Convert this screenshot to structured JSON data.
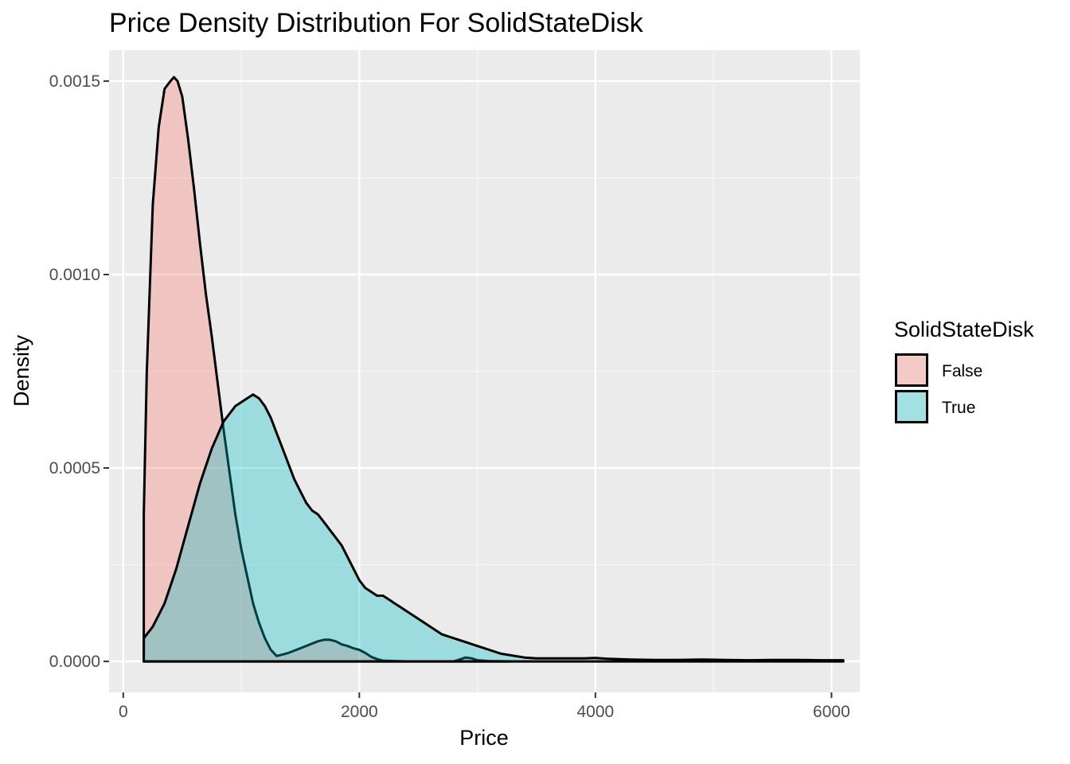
{
  "chart_data": {
    "type": "area",
    "title": "Price Density Distribution For SolidStateDisk",
    "xlabel": "Price",
    "ylabel": "Density",
    "xlim": [
      -120,
      6240
    ],
    "ylim": [
      -8e-05,
      0.00158
    ],
    "x_ticks": [
      0,
      2000,
      4000,
      6000
    ],
    "x_tick_labels": [
      "0",
      "2000",
      "4000",
      "6000"
    ],
    "y_ticks": [
      0,
      0.0005,
      0.001,
      0.0015
    ],
    "y_tick_labels": [
      "0.0000",
      "0.0005",
      "0.0010",
      "0.0015"
    ],
    "grid": true,
    "legend": {
      "title": "SolidStateDisk",
      "position": "right"
    },
    "series": [
      {
        "name": "False",
        "color": "#F8766D",
        "fill_opacity": 0.33,
        "x": [
          174,
          200,
          250,
          300,
          350,
          400,
          430,
          460,
          500,
          550,
          600,
          650,
          700,
          750,
          800,
          850,
          900,
          950,
          1000,
          1050,
          1100,
          1150,
          1200,
          1250,
          1300,
          1350,
          1400,
          1450,
          1500,
          1550,
          1600,
          1650,
          1700,
          1750,
          1800,
          1850,
          1900,
          1950,
          2000,
          2050,
          2100,
          2150,
          2200,
          2300,
          2400,
          2500,
          2600,
          2700,
          2800,
          2850,
          2900,
          2950,
          3000,
          3100,
          3300
        ],
        "y": [
          0.00038,
          0.00075,
          0.00118,
          0.00138,
          0.00148,
          0.0015,
          0.00151,
          0.0015,
          0.00146,
          0.00135,
          0.00122,
          0.00108,
          0.00095,
          0.00084,
          0.00072,
          0.0006,
          0.00049,
          0.00038,
          0.00029,
          0.00022,
          0.00015,
          0.0001,
          6e-05,
          3e-05,
          1.4e-05,
          1.8e-05,
          2.2e-05,
          2.8e-05,
          3.4e-05,
          4e-05,
          4.6e-05,
          5.2e-05,
          5.6e-05,
          5.6e-05,
          5.2e-05,
          4.4e-05,
          4e-05,
          3.4e-05,
          3e-05,
          2.2e-05,
          1.2e-05,
          6e-06,
          2e-06,
          1e-06,
          0.0,
          0.0,
          0.0,
          0.0,
          0.0,
          5e-06,
          1e-05,
          8e-06,
          3e-06,
          1e-06,
          0.0
        ]
      },
      {
        "name": "True",
        "color": "#00BFC4",
        "fill_opacity": 0.33,
        "x": [
          174,
          250,
          350,
          450,
          550,
          650,
          750,
          850,
          950,
          1050,
          1100,
          1150,
          1200,
          1250,
          1300,
          1350,
          1400,
          1450,
          1500,
          1550,
          1600,
          1650,
          1700,
          1750,
          1800,
          1850,
          1900,
          1950,
          2000,
          2050,
          2100,
          2150,
          2200,
          2250,
          2300,
          2350,
          2400,
          2500,
          2600,
          2700,
          2800,
          2900,
          3000,
          3100,
          3200,
          3300,
          3400,
          3500,
          3700,
          3900,
          4000,
          4100,
          4300,
          4500,
          4700,
          4900,
          5100,
          5300,
          5500,
          5700,
          5900,
          6100
        ],
        "y": [
          6e-05,
          9e-05,
          0.00015,
          0.00024,
          0.00035,
          0.00046,
          0.00055,
          0.00062,
          0.00066,
          0.00068,
          0.00069,
          0.00068,
          0.00066,
          0.00063,
          0.00059,
          0.00055,
          0.00051,
          0.00047,
          0.00044,
          0.00041,
          0.00039,
          0.00038,
          0.00036,
          0.00034,
          0.00032,
          0.0003,
          0.00027,
          0.00024,
          0.00021,
          0.00019,
          0.00018,
          0.00017,
          0.00017,
          0.00016,
          0.00015,
          0.00014,
          0.00013,
          0.00011,
          9e-05,
          7e-05,
          6e-05,
          5e-05,
          4e-05,
          3e-05,
          2e-05,
          1.5e-05,
          1e-05,
          8e-06,
          8e-06,
          8e-06,
          9e-06,
          7e-06,
          5e-06,
          4e-06,
          4e-06,
          5e-06,
          4e-06,
          3e-06,
          4e-06,
          4e-06,
          3e-06,
          3e-06
        ]
      }
    ]
  }
}
